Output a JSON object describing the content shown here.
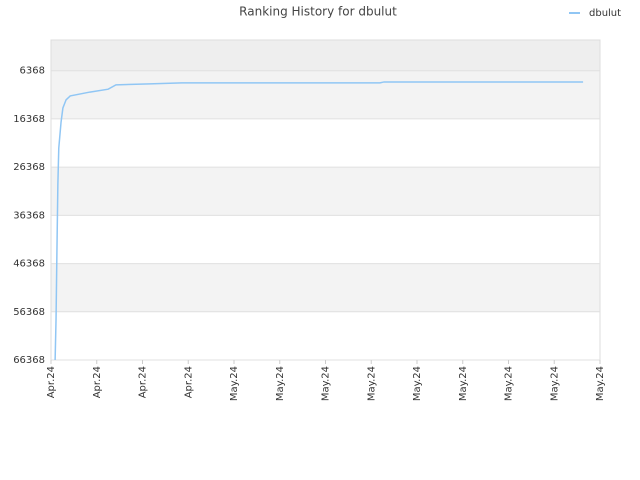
{
  "chart_data": {
    "type": "line",
    "title": "Ranking History for dbulut",
    "x": [
      0.09,
      0.11,
      0.13,
      0.15,
      0.17,
      0.22,
      0.26,
      0.33,
      0.42,
      0.85,
      1.25,
      1.42,
      2.16,
      2.86,
      7.19,
      7.28,
      11.63
    ],
    "series": [
      {
        "name": "dbulut",
        "color": "#90c6f4",
        "values": [
          66368,
          58000,
          43500,
          30000,
          22400,
          17000,
          14100,
          12400,
          11600,
          10800,
          10200,
          9300,
          9100,
          8900,
          8900,
          8700,
          8700
        ]
      }
    ],
    "xlim": [
      0,
      12
    ],
    "xticks": [
      {
        "value": 0,
        "label": "Apr.24"
      },
      {
        "value": 1,
        "label": "Apr.24"
      },
      {
        "value": 2,
        "label": "Apr.24"
      },
      {
        "value": 3,
        "label": "Apr.24"
      },
      {
        "value": 4,
        "label": "May.24"
      },
      {
        "value": 5,
        "label": "May.24"
      },
      {
        "value": 6,
        "label": "May.24"
      },
      {
        "value": 7,
        "label": "May.24"
      },
      {
        "value": 8,
        "label": "May.24"
      },
      {
        "value": 9,
        "label": "May.24"
      },
      {
        "value": 10,
        "label": "May.24"
      },
      {
        "value": 11,
        "label": "May.24"
      },
      {
        "value": 12,
        "label": "May.24"
      }
    ],
    "ylim": [
      66368,
      0
    ],
    "yticks": [
      6368,
      16368,
      26368,
      36368,
      46368,
      56368,
      66368
    ],
    "grid": true,
    "legend": "top-right"
  }
}
